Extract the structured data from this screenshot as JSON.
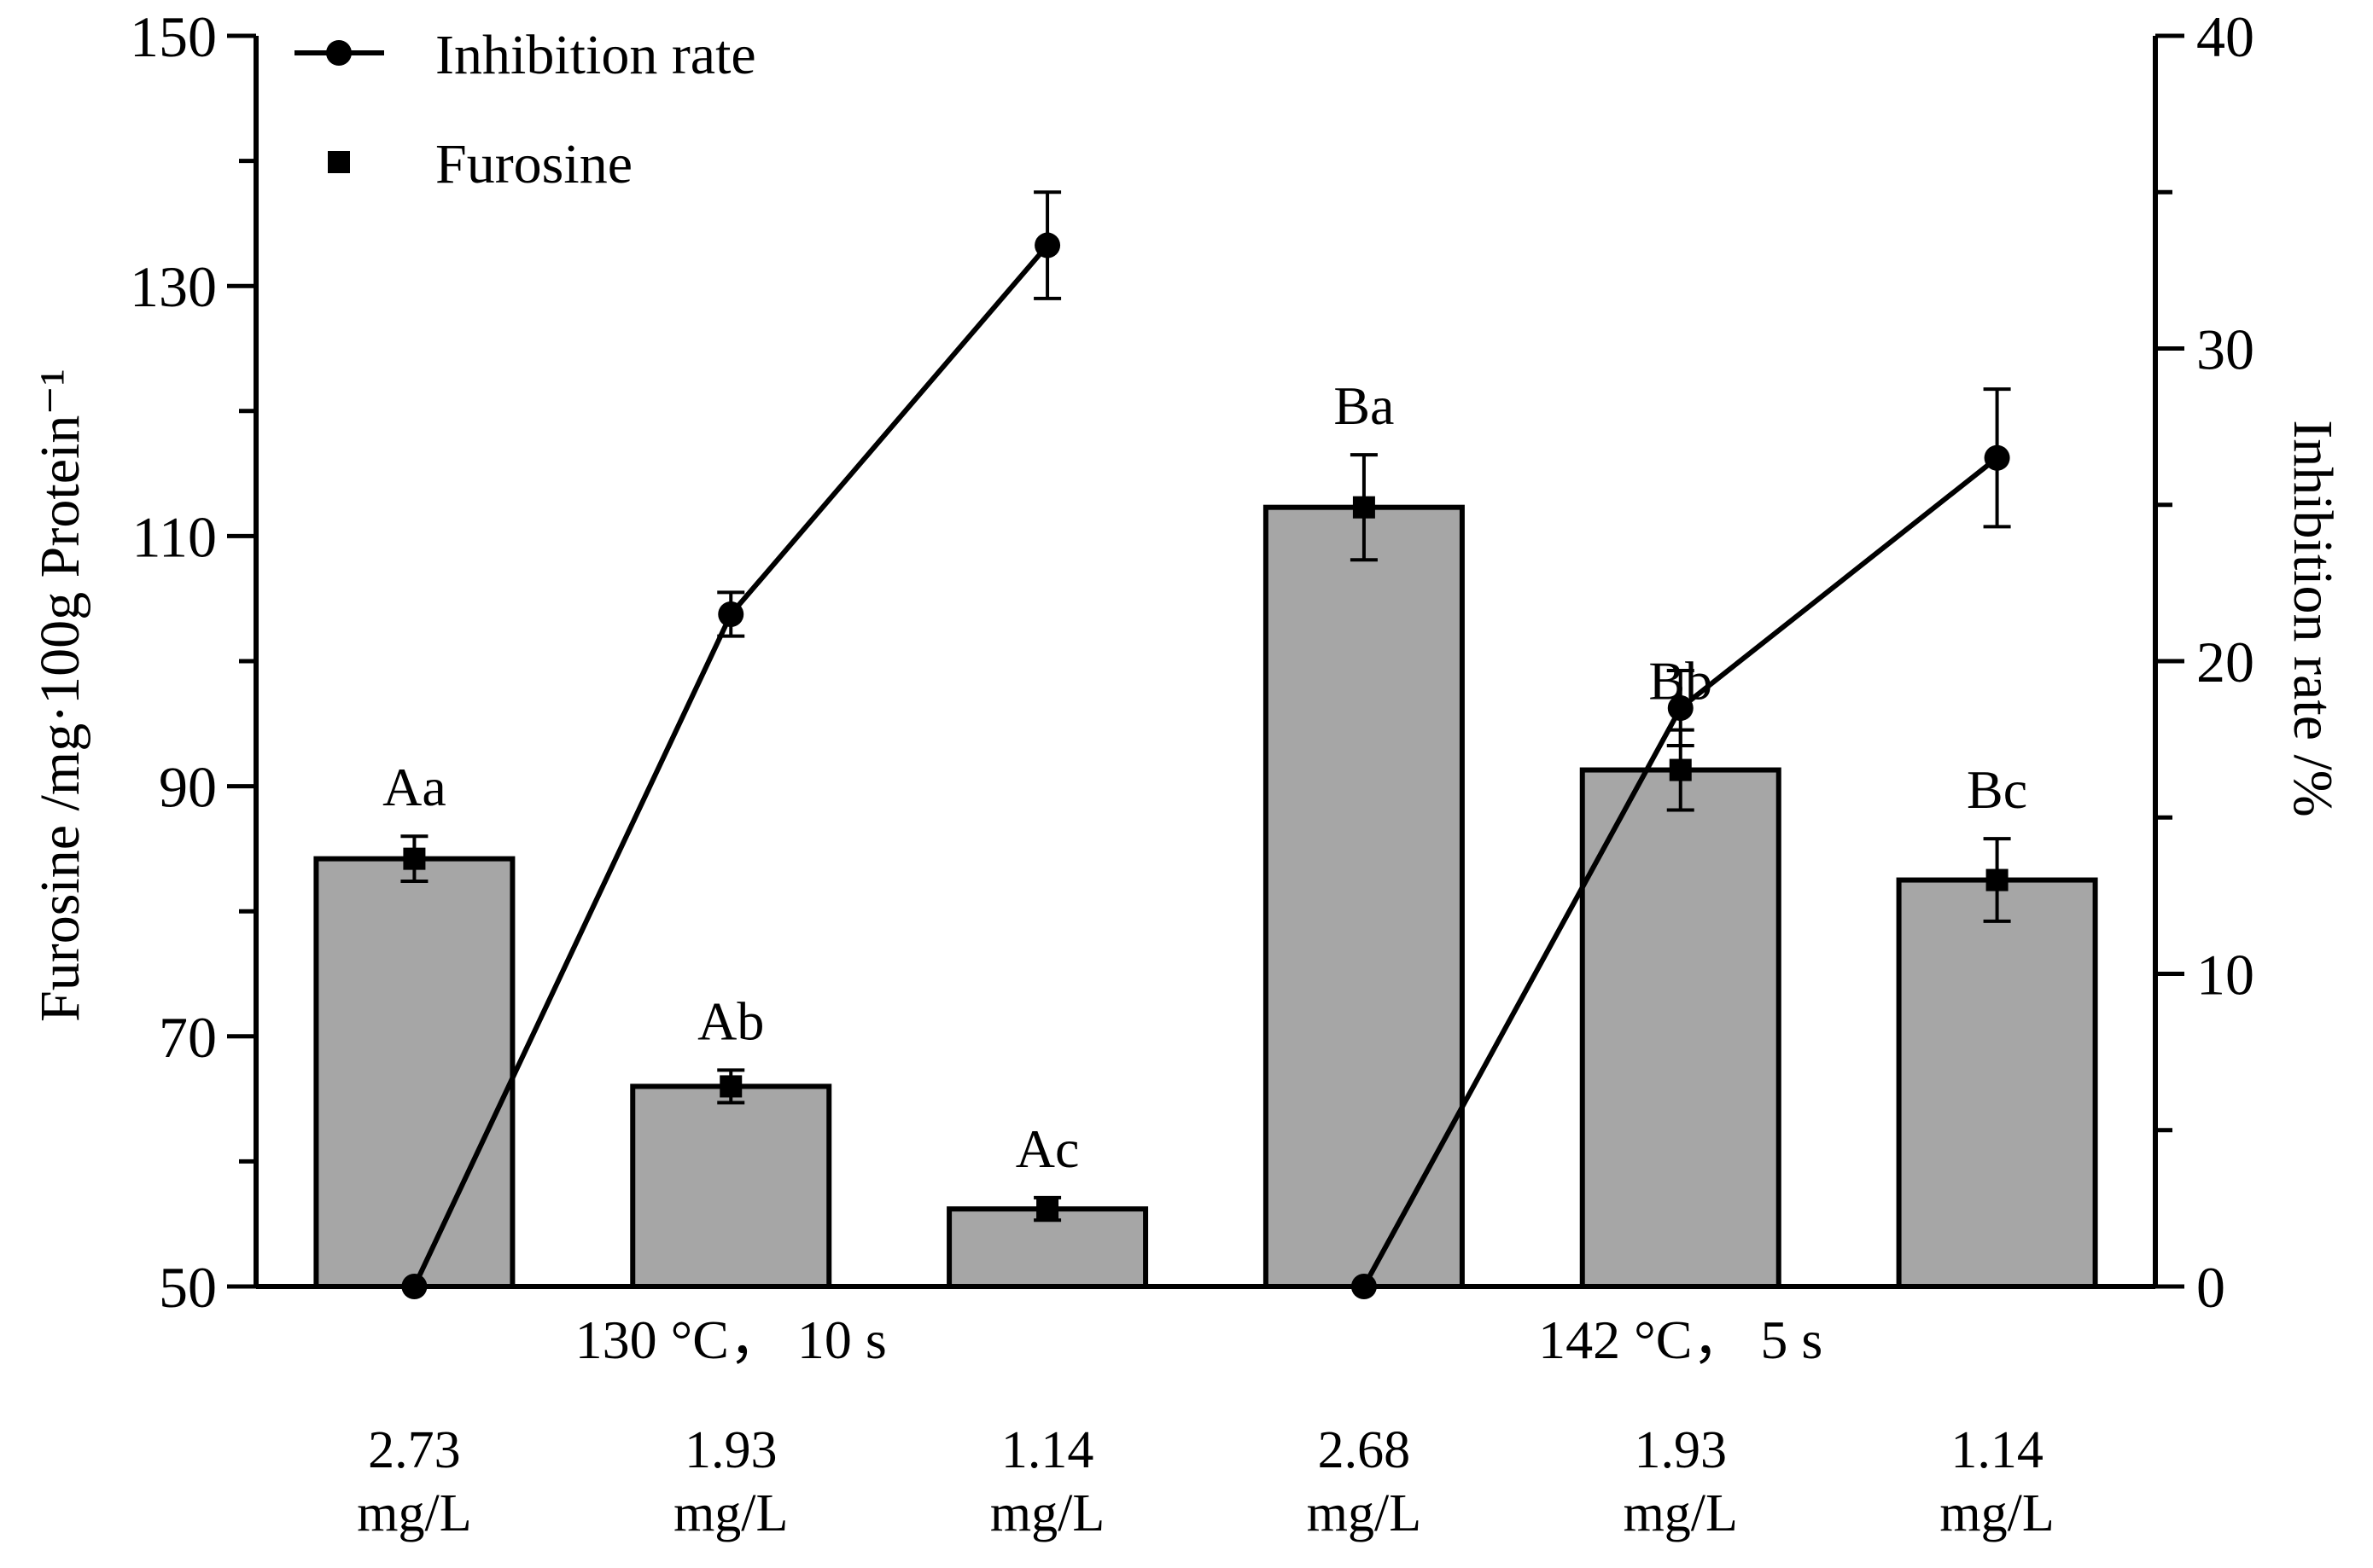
{
  "chart_data": {
    "type": "bar",
    "categories": [
      "2.73 mg/L",
      "1.93 mg/L",
      "1.14 mg/L",
      "2.68 mg/L",
      "1.93 mg/L",
      "1.14 mg/L"
    ],
    "category_lines": [
      [
        "2.73",
        "mg/L"
      ],
      [
        "1.93",
        "mg/L"
      ],
      [
        "1.14",
        "mg/L"
      ],
      [
        "2.68",
        "mg/L"
      ],
      [
        "1.93",
        "mg/L"
      ],
      [
        "1.14",
        "mg/L"
      ]
    ],
    "groups": [
      {
        "label": "130 °C， 10 s",
        "categories": [
          0,
          1,
          2
        ]
      },
      {
        "label": "142 °C， 5 s",
        "categories": [
          3,
          4,
          5
        ]
      }
    ],
    "series": [
      {
        "name": "Furosine",
        "axis": "left",
        "kind": "bar",
        "values": [
          84.2,
          66.0,
          56.2,
          112.3,
          91.3,
          82.5
        ],
        "errors": [
          1.8,
          1.3,
          0.9,
          4.2,
          3.2,
          3.3
        ],
        "significance": [
          "Aa",
          "Ab",
          "Ac",
          "Ba",
          "Bb",
          "Bc"
        ]
      },
      {
        "name": "Inhibition rate",
        "axis": "right",
        "kind": "line",
        "values": [
          0,
          21.5,
          33.3,
          0,
          18.5,
          26.5
        ],
        "errors": [
          0,
          0.7,
          1.7,
          0,
          1.2,
          2.2
        ]
      }
    ],
    "ylabel": "Furosine /mg·100g Protein⁻¹",
    "ylim": [
      50,
      150
    ],
    "yticks": [
      50,
      70,
      90,
      110,
      130,
      150
    ],
    "y2label": "Inhibition rate /%",
    "y2lim": [
      0,
      40
    ],
    "y2ticks": [
      0,
      10,
      20,
      30,
      40
    ],
    "legend": {
      "position": "top-left",
      "entries": [
        "Inhibition rate",
        "Furosine"
      ]
    },
    "grid": false,
    "colors": {
      "bar_fill": "#a6a6a6",
      "bar_stroke": "#000000",
      "line": "#000000"
    }
  }
}
